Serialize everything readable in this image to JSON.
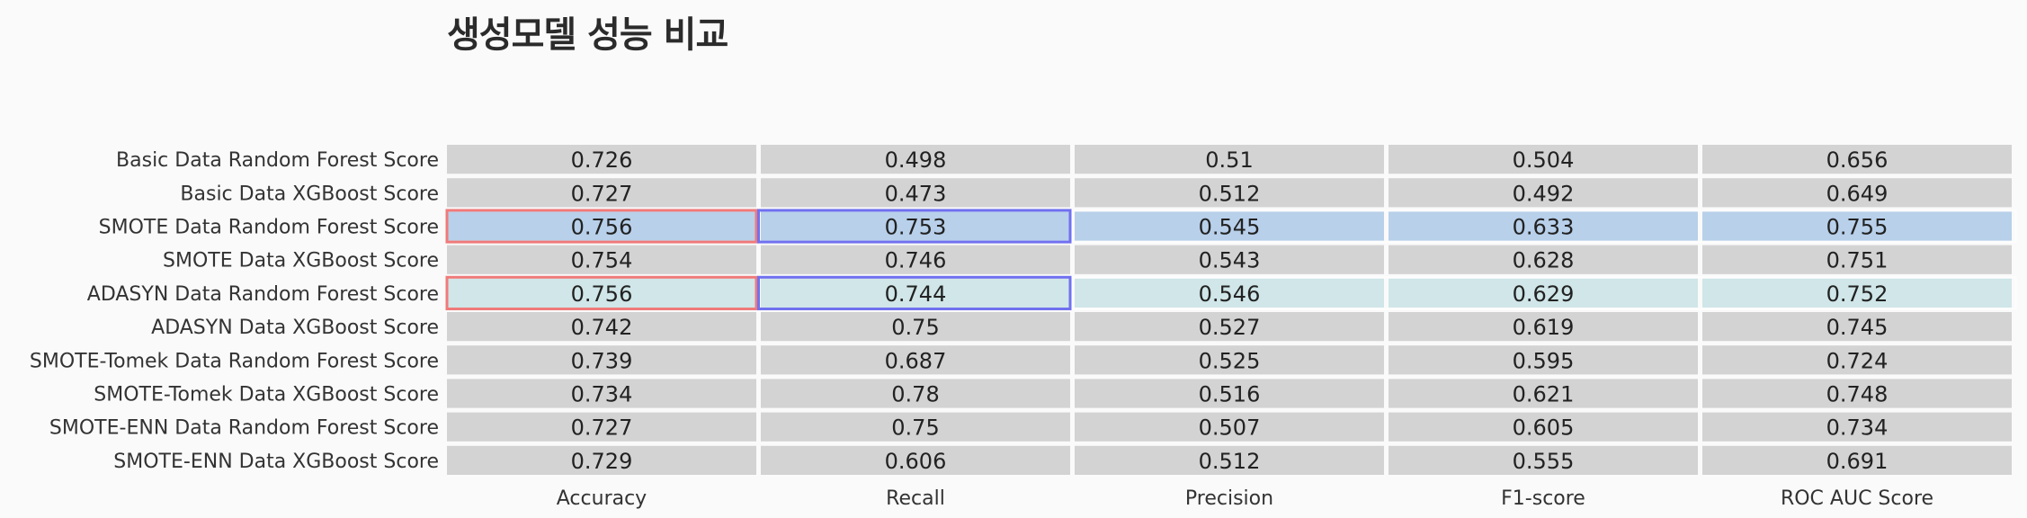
{
  "chart_data": {
    "type": "table",
    "title": "생성모델 성능 비교",
    "columns": [
      "Accuracy",
      "Recall",
      "Precision",
      "F1-score",
      "ROC AUC Score"
    ],
    "rows": [
      "Basic Data Random Forest Score",
      "Basic Data XGBoost Score",
      "SMOTE Data Random Forest Score",
      "SMOTE Data XGBoost Score",
      "ADASYN Data Random Forest Score",
      "ADASYN Data XGBoost Score",
      "SMOTE-Tomek Data Random Forest Score",
      "SMOTE-Tomek Data XGBoost Score",
      "SMOTE-ENN Data Random Forest Score",
      "SMOTE-ENN Data XGBoost Score"
    ],
    "values": [
      [
        "0.726",
        "0.498",
        "0.51",
        "0.504",
        "0.656"
      ],
      [
        "0.727",
        "0.473",
        "0.512",
        "0.492",
        "0.649"
      ],
      [
        "0.756",
        "0.753",
        "0.545",
        "0.633",
        "0.755"
      ],
      [
        "0.754",
        "0.746",
        "0.543",
        "0.628",
        "0.751"
      ],
      [
        "0.756",
        "0.744",
        "0.546",
        "0.629",
        "0.752"
      ],
      [
        "0.742",
        "0.75",
        "0.527",
        "0.619",
        "0.745"
      ],
      [
        "0.739",
        "0.687",
        "0.525",
        "0.595",
        "0.724"
      ],
      [
        "0.734",
        "0.78",
        "0.516",
        "0.621",
        "0.748"
      ],
      [
        "0.727",
        "0.75",
        "0.507",
        "0.605",
        "0.734"
      ],
      [
        "0.729",
        "0.606",
        "0.512",
        "0.555",
        "0.691"
      ]
    ],
    "highlighted_rows": [
      {
        "row": 2,
        "color": "#b8d0ea"
      },
      {
        "row": 4,
        "color": "#d0e6e8"
      }
    ],
    "outlined_cells": [
      {
        "row": 2,
        "col": 0,
        "color": "#f07a7a"
      },
      {
        "row": 4,
        "col": 0,
        "color": "#f07a7a"
      },
      {
        "row": 2,
        "col": 1,
        "color": "#7070f0"
      },
      {
        "row": 4,
        "col": 1,
        "color": "#7070f0"
      }
    ],
    "colors": {
      "cell_default": "#d3d3d3",
      "background": "#fafafa",
      "grid": "#ffffff"
    }
  }
}
